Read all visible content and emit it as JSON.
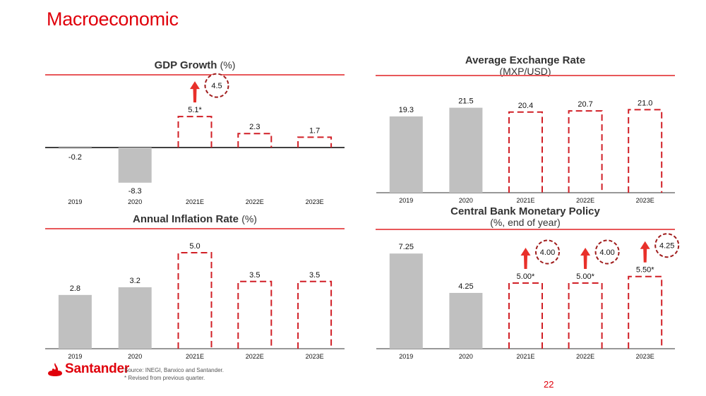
{
  "page": {
    "title": "Macroeconomic",
    "page_number": "22",
    "brand": "Santander",
    "source_note": "Source: INEGI, Banxico and Santander.",
    "revision_note": "* Revised from previous quarter.",
    "colors": {
      "brand_red": "#e0000b",
      "actual_bar": "#c0c0c0",
      "estimate_outline": "#d11f26",
      "previous_circle": "#a01c1c"
    }
  },
  "chart_data": [
    {
      "id": "gdp",
      "type": "bar",
      "title": "GDP Growth",
      "title_unit": "(%)",
      "subtitle": "",
      "categories": [
        "2019",
        "2020",
        "2021E",
        "2022E",
        "2023E"
      ],
      "values": [
        -0.2,
        -8.3,
        5.1,
        2.3,
        1.7
      ],
      "labels": [
        "-0.2",
        "-8.3",
        "5.1*",
        "2.3",
        "1.7"
      ],
      "estimate": [
        false,
        false,
        true,
        true,
        true
      ],
      "revisions": [
        {
          "category": "2021E",
          "previous": "4.5",
          "direction": "up"
        }
      ],
      "xlabel": "",
      "ylabel": "",
      "grid": false
    },
    {
      "id": "fx",
      "type": "bar",
      "title": "Average Exchange Rate",
      "title_unit": "",
      "subtitle": "(MXP/USD)",
      "categories": [
        "2019",
        "2020",
        "2021E",
        "2022E",
        "2023E"
      ],
      "values": [
        19.3,
        21.5,
        20.4,
        20.7,
        21.0
      ],
      "labels": [
        "19.3",
        "21.5",
        "20.4",
        "20.7",
        "21.0"
      ],
      "estimate": [
        false,
        false,
        true,
        true,
        true
      ],
      "revisions": [],
      "xlabel": "",
      "ylabel": "",
      "grid": false
    },
    {
      "id": "inflation",
      "type": "bar",
      "title": "Annual Inflation Rate",
      "title_unit": "(%)",
      "subtitle": "",
      "categories": [
        "2019",
        "2020",
        "2021E",
        "2022E",
        "2023E"
      ],
      "values": [
        2.8,
        3.2,
        5.0,
        3.5,
        3.5
      ],
      "labels": [
        "2.8",
        "3.2",
        "5.0",
        "3.5",
        "3.5"
      ],
      "estimate": [
        false,
        false,
        true,
        true,
        true
      ],
      "revisions": [],
      "xlabel": "",
      "ylabel": "",
      "grid": false
    },
    {
      "id": "policy",
      "type": "bar",
      "title": "Central Bank Monetary Policy",
      "title_unit": "",
      "subtitle": "(%, end of year)",
      "categories": [
        "2019",
        "2020",
        "2021E",
        "2022E",
        "2023E"
      ],
      "values": [
        7.25,
        4.25,
        5.0,
        5.0,
        5.5
      ],
      "labels": [
        "7.25",
        "4.25",
        "5.00*",
        "5.00*",
        "5.50*"
      ],
      "estimate": [
        false,
        false,
        true,
        true,
        true
      ],
      "revisions": [
        {
          "category": "2021E",
          "previous": "4.00",
          "direction": "up"
        },
        {
          "category": "2022E",
          "previous": "4.00",
          "direction": "up"
        },
        {
          "category": "2023E",
          "previous": "4.25",
          "direction": "up"
        }
      ],
      "xlabel": "",
      "ylabel": "",
      "grid": false
    }
  ]
}
